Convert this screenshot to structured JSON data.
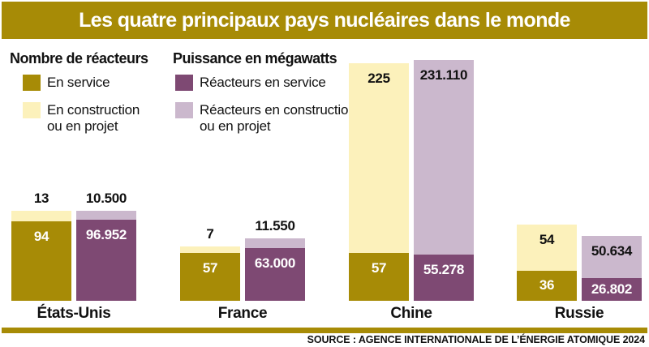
{
  "title": "Les quatre principaux pays nucléaires dans le monde",
  "legend": {
    "reactors": {
      "heading": "Nombre de réacteurs",
      "in_service": "En service",
      "construction": "En construction ou en projet"
    },
    "power": {
      "heading": "Puissance en mégawatts",
      "in_service": "Réacteurs en service",
      "construction": "Réacteurs en construction ou en projet"
    }
  },
  "colors": {
    "gold": "#a78b06",
    "pale_yellow": "#fcf1bb",
    "purple": "#7e4973",
    "lavender": "#cbb8cd"
  },
  "source": "SOURCE : AGENCE INTERNATIONALE DE L’ÉNERGIE ATOMIQUE 2024",
  "chart_data": {
    "type": "bar",
    "subtype": "grouped-stacked",
    "title": "Les quatre principaux pays nucléaires dans le monde",
    "categories": [
      "États-Unis",
      "France",
      "Chine",
      "Russie"
    ],
    "series": [
      {
        "name": "Réacteurs en service",
        "unit": "reactors",
        "color_key": "gold",
        "label_color": "#ffffff",
        "values": [
          94,
          57,
          57,
          36
        ],
        "labels": [
          "94",
          "57",
          "57",
          "36"
        ]
      },
      {
        "name": "Réacteurs en construction ou en projet",
        "unit": "reactors",
        "color_key": "pale_yellow",
        "label_color": "#111111",
        "values": [
          13,
          7,
          225,
          54
        ],
        "labels": [
          "13",
          "7",
          "225",
          "54"
        ]
      },
      {
        "name": "Puissance en service (mégawatts)",
        "unit": "mw",
        "color_key": "purple",
        "label_color": "#ffffff",
        "values": [
          96952,
          63000,
          55278,
          26802
        ],
        "labels": [
          "96.952",
          "63.000",
          "55.278",
          "26.802"
        ]
      },
      {
        "name": "Puissance en construction ou en projet (mégawatts)",
        "unit": "mw",
        "color_key": "lavender",
        "label_color": "#111111",
        "values": [
          10500,
          11550,
          231110,
          50634
        ],
        "labels": [
          "10.500",
          "11.550",
          "231.110",
          "50.634"
        ]
      }
    ],
    "legend_position": "top-left",
    "grid": false,
    "axes": "none — values labelled directly on bars"
  }
}
